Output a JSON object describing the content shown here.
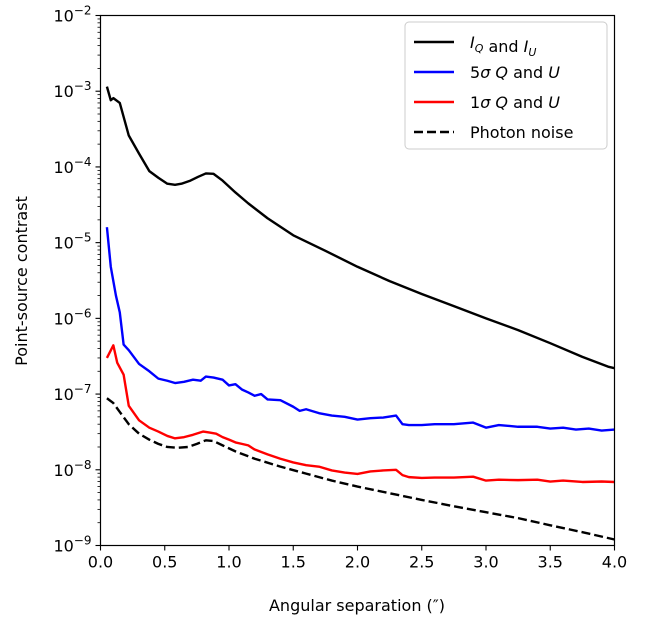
{
  "chart_data": {
    "type": "line",
    "xlabel": "Angular separation (″)",
    "ylabel": "Point-source contrast",
    "x_scale": "linear",
    "y_scale": "log",
    "xlim": [
      0.0,
      4.0
    ],
    "ylim": [
      1e-09,
      0.01
    ],
    "grid": false,
    "legend_position": "top-right",
    "x_ticks": [
      0.0,
      0.5,
      1.0,
      1.5,
      2.0,
      2.5,
      3.0,
      3.5,
      4.0
    ],
    "x_tick_labels": [
      "0.0",
      "0.5",
      "1.0",
      "1.5",
      "2.0",
      "2.5",
      "3.0",
      "3.5",
      "4.0"
    ],
    "y_tick_exponents": [
      -9,
      -8,
      -7,
      -6,
      -5,
      -4,
      -3,
      -2
    ],
    "y_tick_base": "10",
    "series": [
      {
        "name_parts": [
          "I",
          "Q",
          " and ",
          "I",
          "U"
        ],
        "color": "#000000",
        "dash": "solid",
        "x": [
          0.05,
          0.08,
          0.1,
          0.15,
          0.22,
          0.3,
          0.38,
          0.45,
          0.52,
          0.58,
          0.63,
          0.7,
          0.76,
          0.82,
          0.88,
          0.95,
          1.05,
          1.15,
          1.3,
          1.5,
          1.75,
          2.0,
          2.25,
          2.5,
          2.75,
          3.0,
          3.25,
          3.5,
          3.75,
          3.95,
          4.0
        ],
        "y": [
          0.00115,
          0.00076,
          0.00081,
          0.0007,
          0.00026,
          0.00015,
          8.8e-05,
          7.2e-05,
          6e-05,
          5.8e-05,
          6e-05,
          6.6e-05,
          7.4e-05,
          8.2e-05,
          8.1e-05,
          6.6e-05,
          4.6e-05,
          3.3e-05,
          2.1e-05,
          1.25e-05,
          7.8e-06,
          4.8e-06,
          3.1e-06,
          2.1e-06,
          1.45e-06,
          1e-06,
          7e-07,
          4.7e-07,
          3.1e-07,
          2.3e-07,
          2.2e-07
        ]
      },
      {
        "name_parts": [
          "5",
          "σ",
          " ",
          "Q",
          " and ",
          "U"
        ],
        "color": "#0000ff",
        "dash": "solid",
        "x": [
          0.05,
          0.08,
          0.12,
          0.15,
          0.18,
          0.22,
          0.3,
          0.38,
          0.45,
          0.52,
          0.58,
          0.65,
          0.72,
          0.78,
          0.82,
          0.88,
          0.95,
          1.0,
          1.05,
          1.1,
          1.15,
          1.2,
          1.25,
          1.3,
          1.4,
          1.5,
          1.55,
          1.6,
          1.7,
          1.8,
          1.9,
          2.0,
          2.1,
          2.2,
          2.3,
          2.35,
          2.4,
          2.5,
          2.6,
          2.75,
          2.9,
          3.0,
          3.1,
          3.25,
          3.4,
          3.5,
          3.6,
          3.7,
          3.8,
          3.9,
          4.0
        ],
        "y": [
          1.6e-05,
          4.8e-06,
          2e-06,
          1.2e-06,
          4.5e-07,
          3.8e-07,
          2.5e-07,
          2e-07,
          1.6e-07,
          1.5e-07,
          1.4e-07,
          1.45e-07,
          1.55e-07,
          1.5e-07,
          1.7e-07,
          1.65e-07,
          1.55e-07,
          1.3e-07,
          1.35e-07,
          1.15e-07,
          1.05e-07,
          9.5e-08,
          1e-07,
          8.5e-08,
          8.3e-08,
          6.8e-08,
          6e-08,
          6.3e-08,
          5.6e-08,
          5.2e-08,
          5e-08,
          4.6e-08,
          4.8e-08,
          4.9e-08,
          5.2e-08,
          4e-08,
          3.9e-08,
          3.9e-08,
          4e-08,
          4e-08,
          4.2e-08,
          3.6e-08,
          3.9e-08,
          3.7e-08,
          3.7e-08,
          3.5e-08,
          3.6e-08,
          3.4e-08,
          3.5e-08,
          3.3e-08,
          3.4e-08
        ]
      },
      {
        "name_parts": [
          "1",
          "σ",
          " ",
          "Q",
          " and ",
          "U"
        ],
        "color": "#ff0000",
        "dash": "solid",
        "x": [
          0.05,
          0.1,
          0.13,
          0.18,
          0.22,
          0.3,
          0.38,
          0.45,
          0.52,
          0.58,
          0.65,
          0.72,
          0.8,
          0.85,
          0.9,
          0.95,
          1.0,
          1.05,
          1.1,
          1.15,
          1.2,
          1.3,
          1.4,
          1.5,
          1.6,
          1.7,
          1.8,
          1.9,
          2.0,
          2.1,
          2.2,
          2.3,
          2.35,
          2.4,
          2.5,
          2.6,
          2.75,
          2.9,
          3.0,
          3.1,
          3.25,
          3.4,
          3.5,
          3.6,
          3.75,
          3.9,
          4.0
        ],
        "y": [
          3e-07,
          4.4e-07,
          2.6e-07,
          1.8e-07,
          7e-08,
          4.5e-08,
          3.6e-08,
          3.2e-08,
          2.8e-08,
          2.6e-08,
          2.7e-08,
          2.9e-08,
          3.2e-08,
          3.1e-08,
          3e-08,
          2.7e-08,
          2.5e-08,
          2.3e-08,
          2.2e-08,
          2.1e-08,
          1.85e-08,
          1.6e-08,
          1.4e-08,
          1.25e-08,
          1.15e-08,
          1.1e-08,
          9.8e-09,
          9.2e-09,
          8.8e-09,
          9.5e-09,
          9.8e-09,
          1e-08,
          8.5e-09,
          8e-09,
          7.8e-09,
          7.9e-09,
          7.9e-09,
          8.1e-09,
          7.2e-09,
          7.4e-09,
          7.3e-09,
          7.4e-09,
          7e-09,
          7.2e-09,
          6.9e-09,
          7e-09,
          6.9e-09
        ]
      },
      {
        "name_parts": [
          "Photon noise"
        ],
        "color": "#000000",
        "dash": "dashed",
        "x": [
          0.05,
          0.1,
          0.15,
          0.22,
          0.3,
          0.38,
          0.45,
          0.52,
          0.6,
          0.68,
          0.75,
          0.82,
          0.88,
          0.95,
          1.05,
          1.2,
          1.4,
          1.6,
          1.8,
          2.0,
          2.25,
          2.5,
          2.75,
          3.0,
          3.25,
          3.5,
          3.75,
          4.0
        ],
        "y": [
          8.8e-08,
          7.6e-08,
          5.8e-08,
          4e-08,
          3e-08,
          2.5e-08,
          2.2e-08,
          2e-08,
          1.95e-08,
          2e-08,
          2.2e-08,
          2.45e-08,
          2.4e-08,
          2.1e-08,
          1.75e-08,
          1.4e-08,
          1.1e-08,
          8.9e-09,
          7.2e-09,
          6e-09,
          4.9e-09,
          4e-09,
          3.3e-09,
          2.75e-09,
          2.3e-09,
          1.85e-09,
          1.5e-09,
          1.2e-09
        ]
      }
    ]
  }
}
